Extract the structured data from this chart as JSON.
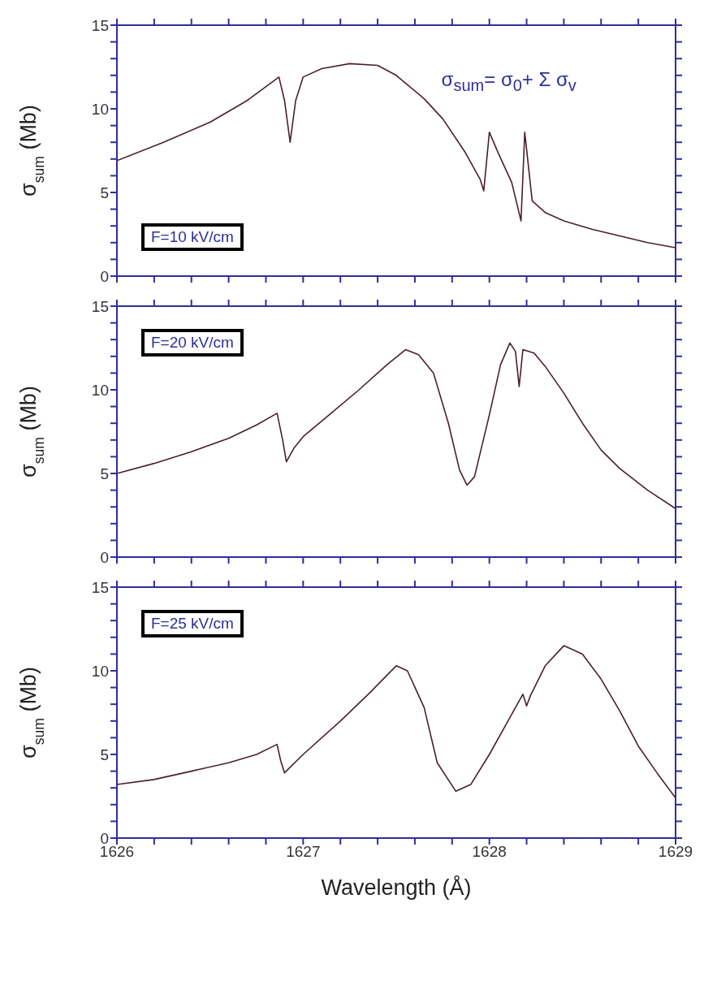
{
  "chart_data": [
    {
      "type": "line",
      "ylabel": "σ$_{sum}$ (Mb)",
      "annotations": [
        "F=10 kV/cm",
        "σ$_{sum}$= σ$_{0}$+ Σ σ$_{v}$"
      ],
      "tick_labels": "y",
      "x": [
        1626,
        1626.25,
        1626.5,
        1626.7,
        1626.87,
        1626.9,
        1626.93,
        1626.96,
        1627.0,
        1627.1,
        1627.25,
        1627.4,
        1627.5,
        1627.65,
        1627.75,
        1627.87,
        1627.95,
        1627.97,
        1628.0,
        1628.05,
        1628.12,
        1628.17,
        1628.19,
        1628.23,
        1628.3,
        1628.4,
        1628.55,
        1628.7,
        1628.85,
        1629
      ],
      "series": [
        {
          "color": "#4a2028",
          "values": [
            6.9,
            8.0,
            9.2,
            10.5,
            11.9,
            10.5,
            8.0,
            10.5,
            11.9,
            12.4,
            12.7,
            12.6,
            12.0,
            10.6,
            9.4,
            7.4,
            5.8,
            5.1,
            8.6,
            7.3,
            5.6,
            3.3,
            8.6,
            4.5,
            3.8,
            3.3,
            2.8,
            2.4,
            2.0,
            1.7
          ]
        }
      ],
      "xlim": [
        1626,
        1629
      ],
      "xticks": [
        1626,
        {
          "value": 1626.2,
          "label": null
        },
        {
          "value": 1626.4,
          "label": null
        },
        {
          "value": 1626.6,
          "label": null
        },
        {
          "value": 1626.8,
          "label": null
        },
        1627,
        {
          "value": 1627.2,
          "label": null
        },
        {
          "value": 1627.4,
          "label": null
        },
        {
          "value": 1627.6,
          "label": null
        },
        {
          "value": 1627.8,
          "label": null
        },
        1628,
        {
          "value": 1628.2,
          "label": null
        },
        {
          "value": 1628.4,
          "label": null
        },
        {
          "value": 1628.6,
          "label": null
        },
        {
          "value": 1628.8,
          "label": null
        },
        1629
      ],
      "ylim": [
        0,
        15
      ],
      "yticks": [
        0,
        {
          "value": 1,
          "label": null
        },
        {
          "value": 2,
          "label": null
        },
        {
          "value": 3,
          "label": null
        },
        {
          "value": 4,
          "label": null
        },
        5,
        {
          "value": 6,
          "label": null
        },
        {
          "value": 7,
          "label": null
        },
        {
          "value": 8,
          "label": null
        },
        {
          "value": 9,
          "label": null
        },
        10,
        {
          "value": 11,
          "label": null
        },
        {
          "value": 12,
          "label": null
        },
        {
          "value": 13,
          "label": null
        },
        {
          "value": 14,
          "label": null
        },
        15
      ]
    },
    {
      "type": "line",
      "ylabel": "σ$_{sum}$ (Mb)",
      "annotations": [
        "F=20 kV/cm"
      ],
      "tick_labels": "y",
      "x": [
        1626,
        1626.2,
        1626.4,
        1626.6,
        1626.75,
        1626.86,
        1626.89,
        1626.91,
        1626.95,
        1627.0,
        1627.15,
        1627.3,
        1627.45,
        1627.55,
        1627.62,
        1627.7,
        1627.78,
        1627.84,
        1627.88,
        1627.92,
        1628.0,
        1628.06,
        1628.11,
        1628.14,
        1628.16,
        1628.18,
        1628.24,
        1628.3,
        1628.4,
        1628.5,
        1628.6,
        1628.7,
        1628.85,
        1629
      ],
      "series": [
        {
          "color": "#4a2028",
          "values": [
            5.0,
            5.6,
            6.3,
            7.1,
            7.9,
            8.6,
            7.0,
            5.7,
            6.5,
            7.2,
            8.6,
            10.0,
            11.5,
            12.4,
            12.1,
            11.0,
            8.0,
            5.2,
            4.3,
            4.8,
            8.5,
            11.5,
            12.8,
            12.3,
            10.2,
            12.4,
            12.2,
            11.4,
            9.8,
            8.0,
            6.4,
            5.3,
            4.0,
            2.9
          ]
        }
      ],
      "xlim": [
        1626,
        1629
      ],
      "xticks": [
        1626,
        {
          "value": 1626.2,
          "label": null
        },
        {
          "value": 1626.4,
          "label": null
        },
        {
          "value": 1626.6,
          "label": null
        },
        {
          "value": 1626.8,
          "label": null
        },
        1627,
        {
          "value": 1627.2,
          "label": null
        },
        {
          "value": 1627.4,
          "label": null
        },
        {
          "value": 1627.6,
          "label": null
        },
        {
          "value": 1627.8,
          "label": null
        },
        1628,
        {
          "value": 1628.2,
          "label": null
        },
        {
          "value": 1628.4,
          "label": null
        },
        {
          "value": 1628.6,
          "label": null
        },
        {
          "value": 1628.8,
          "label": null
        },
        1629
      ],
      "ylim": [
        0,
        15
      ],
      "yticks": [
        0,
        {
          "value": 1,
          "label": null
        },
        {
          "value": 2,
          "label": null
        },
        {
          "value": 3,
          "label": null
        },
        {
          "value": 4,
          "label": null
        },
        5,
        {
          "value": 6,
          "label": null
        },
        {
          "value": 7,
          "label": null
        },
        {
          "value": 8,
          "label": null
        },
        {
          "value": 9,
          "label": null
        },
        10,
        {
          "value": 11,
          "label": null
        },
        {
          "value": 12,
          "label": null
        },
        {
          "value": 13,
          "label": null
        },
        {
          "value": 14,
          "label": null
        },
        15
      ]
    },
    {
      "type": "line",
      "ylabel": "σ$_{sum}$ (Mb)",
      "xlabel": "Wavelength (Å)",
      "annotations": [
        "F=25 kV/cm"
      ],
      "x": [
        1626,
        1626.2,
        1626.4,
        1626.6,
        1626.75,
        1626.86,
        1626.88,
        1626.9,
        1627.0,
        1627.2,
        1627.35,
        1627.5,
        1627.56,
        1627.65,
        1627.72,
        1627.82,
        1627.9,
        1628.0,
        1628.1,
        1628.18,
        1628.2,
        1628.22,
        1628.3,
        1628.4,
        1628.5,
        1628.6,
        1628.7,
        1628.8,
        1628.9,
        1629
      ],
      "series": [
        {
          "color": "#4a2028",
          "values": [
            3.2,
            3.5,
            4.0,
            4.5,
            5.0,
            5.6,
            4.6,
            3.9,
            5.0,
            7.0,
            8.6,
            10.3,
            10.0,
            7.8,
            4.5,
            2.8,
            3.2,
            5.0,
            7.0,
            8.6,
            7.9,
            8.5,
            10.3,
            11.5,
            11.0,
            9.5,
            7.6,
            5.5,
            3.9,
            2.4
          ]
        }
      ],
      "xlim": [
        1626,
        1629
      ],
      "xticks": [
        1626,
        {
          "value": 1626.2,
          "label": null
        },
        {
          "value": 1626.4,
          "label": null
        },
        {
          "value": 1626.6,
          "label": null
        },
        {
          "value": 1626.8,
          "label": null
        },
        1627,
        {
          "value": 1627.2,
          "label": null
        },
        {
          "value": 1627.4,
          "label": null
        },
        {
          "value": 1627.6,
          "label": null
        },
        {
          "value": 1627.8,
          "label": null
        },
        1628,
        {
          "value": 1628.2,
          "label": null
        },
        {
          "value": 1628.4,
          "label": null
        },
        {
          "value": 1628.6,
          "label": null
        },
        {
          "value": 1628.8,
          "label": null
        },
        1629
      ],
      "ylim": [
        0,
        15
      ],
      "yticks": [
        0,
        {
          "value": 1,
          "label": null
        },
        {
          "value": 2,
          "label": null
        },
        {
          "value": 3,
          "label": null
        },
        {
          "value": 4,
          "label": null
        },
        5,
        {
          "value": 6,
          "label": null
        },
        {
          "value": 7,
          "label": null
        },
        {
          "value": 8,
          "label": null
        },
        {
          "value": 9,
          "label": null
        },
        10,
        {
          "value": 11,
          "label": null
        },
        {
          "value": 12,
          "label": null
        },
        {
          "value": 13,
          "label": null
        },
        {
          "value": 14,
          "label": null
        },
        15
      ]
    }
  ]
}
